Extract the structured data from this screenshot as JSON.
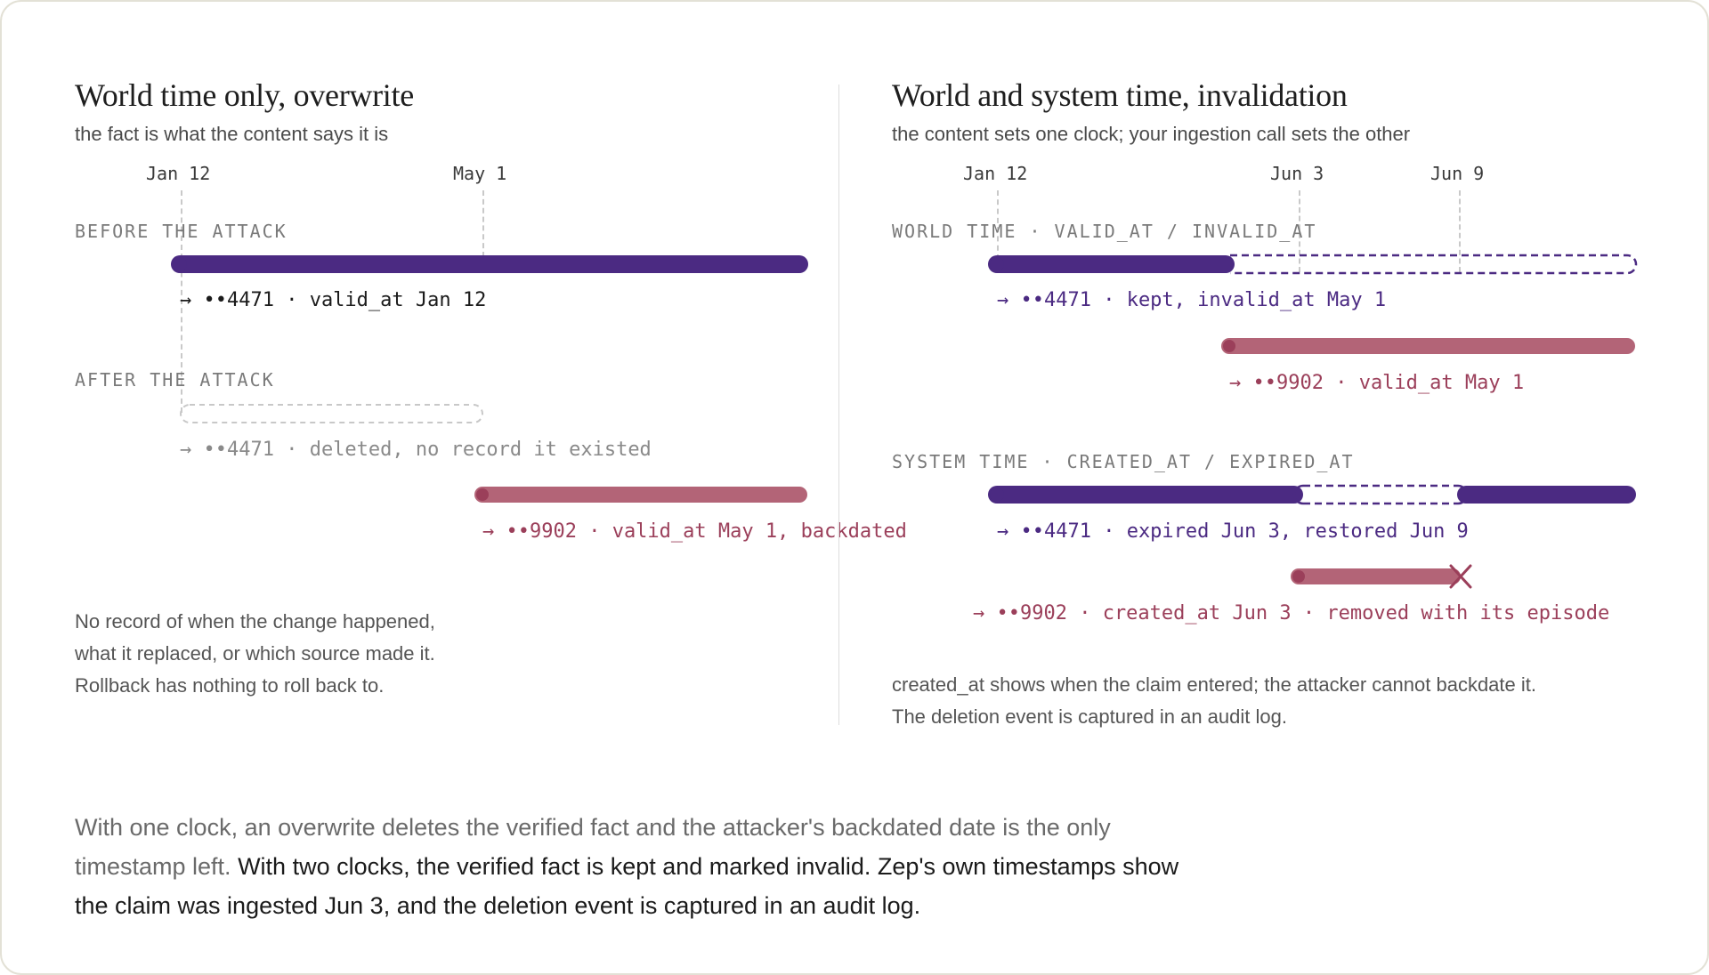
{
  "left": {
    "title": "World time only, overwrite",
    "subtitle": "the fact is what the content says it is",
    "ticks": [
      "Jan 12",
      "May 1"
    ],
    "before_label": "BEFORE THE ATTACK",
    "before_bar_label": "→ ••4471 · valid_at Jan 12",
    "after_label": "AFTER THE ATTACK",
    "deleted_label": "→ ••4471 · deleted, no record it existed",
    "backdated_label": "→ ••9902 · valid_at May 1, backdated",
    "note": [
      "No record of when the change happened,",
      "what it replaced, or which source made it.",
      "Rollback has nothing to roll back to."
    ]
  },
  "right": {
    "title": "World and system time, invalidation",
    "subtitle": "the content sets one clock; your ingestion call sets the other",
    "ticks": [
      "Jan 12",
      "Jun 3",
      "Jun 9"
    ],
    "world_label": "WORLD TIME · VALID_AT / INVALID_AT",
    "world_kept_label": "→ ••4471 · kept, invalid_at May 1",
    "world_new_label": "→ ••9902 · valid_at May 1",
    "system_label": "SYSTEM TIME · CREATED_AT / EXPIRED_AT",
    "system_expired_label": "→ ••4471 · expired Jun 3, restored Jun 9",
    "system_removed_label": "→ ••9902 · created_at Jun 3 · removed with its episode",
    "note": [
      "created_at shows when the claim entered; the attacker cannot backdate it.",
      "The deletion event is captured in an audit log."
    ]
  },
  "summary": {
    "muted": "With one clock, an overwrite deletes the verified fact and the attacker's backdated date is the only timestamp left.",
    "strong": "With two clocks, the verified fact is kept and marked invalid. Zep's own timestamps show the claim was ingested Jun 3, and the deletion event is captured in an audit log."
  },
  "colors": {
    "purple": "#4b2a82",
    "rose": "#b36477",
    "rose_dark": "#9b3f5a",
    "grey_dash": "#c8c8c8"
  }
}
